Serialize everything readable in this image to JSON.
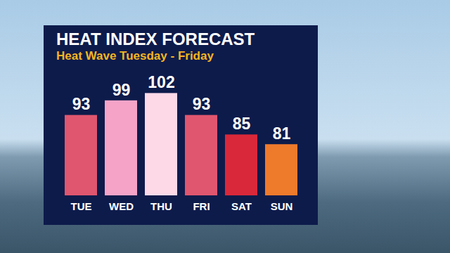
{
  "chart_data": {
    "type": "bar",
    "title": "HEAT INDEX FORECAST",
    "subtitle": "Heat Wave Tuesday - Friday",
    "categories": [
      "TUE",
      "WED",
      "THU",
      "FRI",
      "SAT",
      "SUN"
    ],
    "values": [
      93,
      99,
      102,
      93,
      85,
      81
    ],
    "colors": [
      "#e0566f",
      "#f5a3c7",
      "#fdd9e8",
      "#e0566f",
      "#d9283a",
      "#ee7a2c"
    ],
    "ylim": [
      60,
      105
    ],
    "data_labels": true,
    "tick_labels": "x",
    "grid": false
  }
}
